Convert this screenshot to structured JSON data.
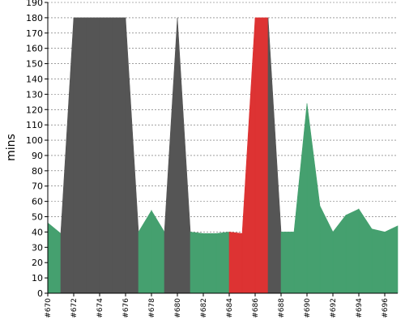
{
  "chart_data": {
    "type": "area",
    "title": "",
    "xlabel": "",
    "ylabel": "mins",
    "ylim": [
      0,
      190
    ],
    "y_tick_step": 10,
    "grid": true,
    "x_range": [
      670,
      697
    ],
    "x_tick_labels": [
      "#670",
      "#672",
      "#674",
      "#676",
      "#678",
      "#680",
      "#682",
      "#684",
      "#686",
      "#688",
      "#690",
      "#692",
      "#694",
      "#696"
    ],
    "x_tick_values": [
      670,
      672,
      674,
      676,
      678,
      680,
      682,
      684,
      686,
      688,
      690,
      692,
      694,
      696
    ],
    "colors": {
      "success": "#45a06f",
      "aborted": "#555555",
      "failed": "#dd3333"
    },
    "builds": [
      {
        "x": 670,
        "value": 46,
        "status": "success"
      },
      {
        "x": 671,
        "value": 39,
        "status": "success"
      },
      {
        "x": 672,
        "value": 180,
        "status": "aborted"
      },
      {
        "x": 673,
        "value": 180,
        "status": "aborted"
      },
      {
        "x": 674,
        "value": 180,
        "status": "aborted"
      },
      {
        "x": 675,
        "value": 180,
        "status": "aborted"
      },
      {
        "x": 676,
        "value": 180,
        "status": "aborted"
      },
      {
        "x": 677,
        "value": 40,
        "status": "success"
      },
      {
        "x": 678,
        "value": 54,
        "status": "success"
      },
      {
        "x": 679,
        "value": 40,
        "status": "success"
      },
      {
        "x": 680,
        "value": 180,
        "status": "aborted"
      },
      {
        "x": 681,
        "value": 40,
        "status": "success"
      },
      {
        "x": 682,
        "value": 39,
        "status": "success"
      },
      {
        "x": 683,
        "value": 39,
        "status": "success"
      },
      {
        "x": 684,
        "value": 40,
        "status": "success"
      },
      {
        "x": 685,
        "value": 39,
        "status": "failed"
      },
      {
        "x": 686,
        "value": 180,
        "status": "failed"
      },
      {
        "x": 687,
        "value": 180,
        "status": "aborted"
      },
      {
        "x": 688,
        "value": 40,
        "status": "success"
      },
      {
        "x": 689,
        "value": 40,
        "status": "success"
      },
      {
        "x": 690,
        "value": 124,
        "status": "success"
      },
      {
        "x": 691,
        "value": 57,
        "status": "success"
      },
      {
        "x": 692,
        "value": 40,
        "status": "success"
      },
      {
        "x": 693,
        "value": 51,
        "status": "success"
      },
      {
        "x": 694,
        "value": 55,
        "status": "success"
      },
      {
        "x": 695,
        "value": 42,
        "status": "success"
      },
      {
        "x": 696,
        "value": 40,
        "status": "success"
      },
      {
        "x": 697,
        "value": 44,
        "status": "success"
      }
    ]
  }
}
